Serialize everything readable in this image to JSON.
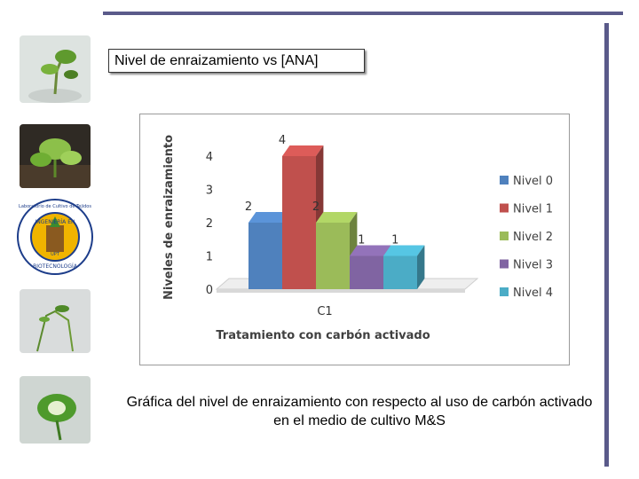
{
  "slide": {
    "title": "Nivel de enraizamiento vs [ANA]",
    "caption": "Gráfica del nivel de enraizamiento con respecto al uso de carbón activado en el medio de cultivo M&S",
    "logo": {
      "top_text": "Laboratorio de Cultivo de Tejidos",
      "center_text": "INGENIERÍA EN",
      "bottom_text": "BIOTECNOLOGÍA",
      "sub_text": "UPT"
    },
    "colors": {
      "rule": "#5a5a8a"
    }
  },
  "chart_data": {
    "type": "bar",
    "categories": [
      "C1"
    ],
    "series": [
      {
        "name": "Nivel 0",
        "values": [
          2
        ],
        "color": "#4f81bd"
      },
      {
        "name": "Nivel 1",
        "values": [
          4
        ],
        "color": "#c0504d"
      },
      {
        "name": "Nivel 2",
        "values": [
          2
        ],
        "color": "#9bbb59"
      },
      {
        "name": "Nivel 3",
        "values": [
          1
        ],
        "color": "#8064a2"
      },
      {
        "name": "Nivel 4",
        "values": [
          1
        ],
        "color": "#4bacc6"
      }
    ],
    "xlabel": "Tratamiento con carbón activado",
    "ylabel": "Niveles de enraizamiento",
    "yticks": [
      0,
      1,
      2,
      3,
      4
    ],
    "ylim": [
      0,
      4
    ],
    "legend": "right",
    "style": "3d-clustered-column",
    "data_labels_shown_for": [
      "Nivel 0",
      "Nivel 1",
      "Nivel 2",
      "Nivel 3",
      "Nivel 4"
    ]
  }
}
